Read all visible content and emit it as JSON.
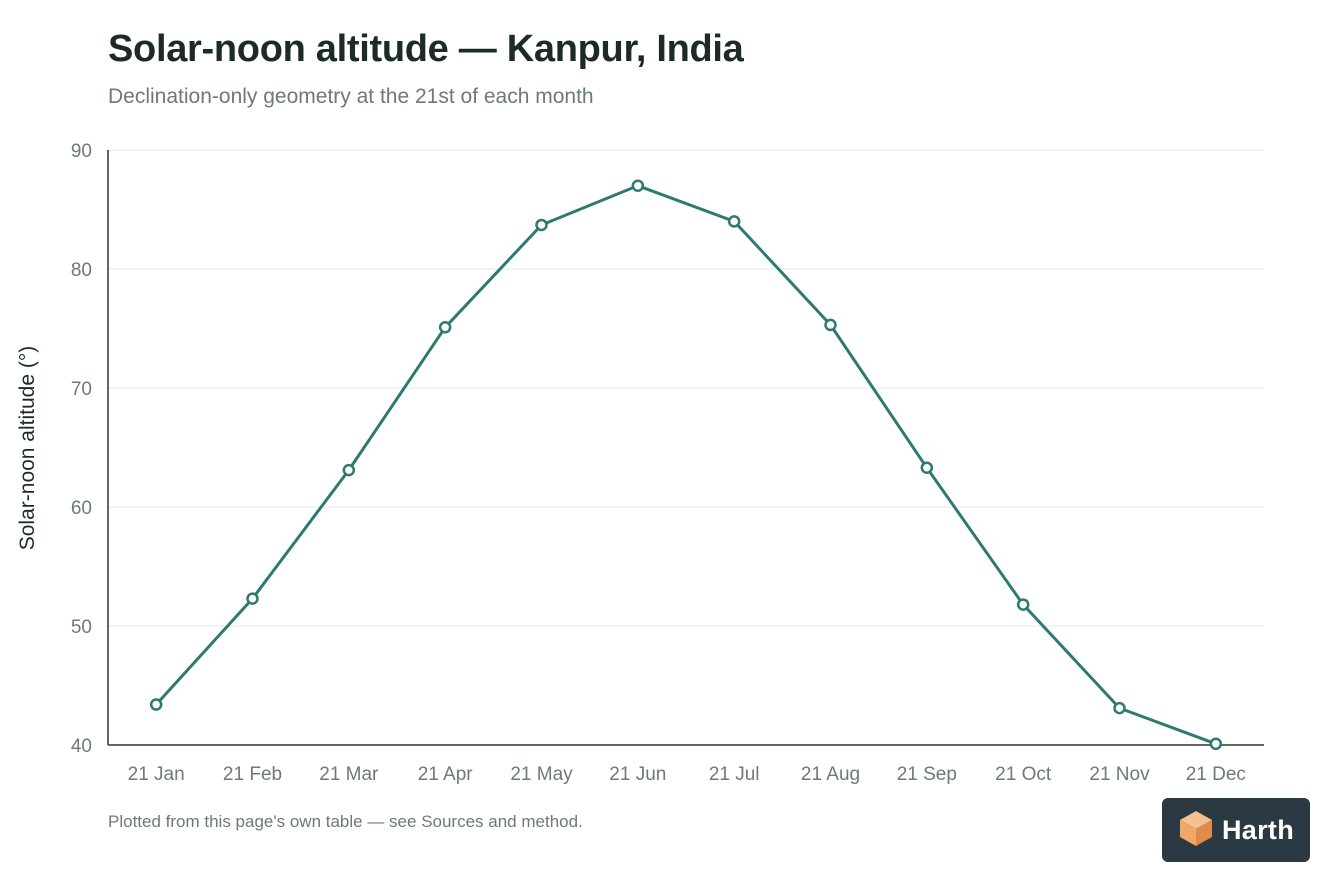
{
  "header": {
    "title": "Solar-noon altitude — Kanpur, India",
    "subtitle": "Declination-only geometry at the 21st of each month"
  },
  "footnote": "Plotted from this page's own table — see Sources and method.",
  "brand": {
    "name": "Harth",
    "logo_icon": "cube-icon",
    "colors": {
      "background": "#2b3a42",
      "cube_light": "#f2b27c",
      "cube_dark": "#e08a4c"
    }
  },
  "chart_data": {
    "type": "line",
    "title": "Solar-noon altitude — Kanpur, India",
    "subtitle": "Declination-only geometry at the 21st of each month",
    "xlabel": "",
    "ylabel": "Solar-noon altitude (°)",
    "categories": [
      "21 Jan",
      "21 Feb",
      "21 Mar",
      "21 Apr",
      "21 May",
      "21 Jun",
      "21 Jul",
      "21 Aug",
      "21 Sep",
      "21 Oct",
      "21 Nov",
      "21 Dec"
    ],
    "series": [
      {
        "values": [
          43.4,
          52.3,
          63.1,
          75.1,
          83.7,
          87.0,
          84.0,
          75.3,
          63.3,
          51.8,
          43.1,
          40.1
        ],
        "color": "#2e7a70"
      }
    ],
    "ylim": [
      40,
      90
    ],
    "yticks": [
      40,
      50,
      60,
      70,
      80,
      90
    ],
    "grid": true,
    "markers": "hollow-circle"
  }
}
